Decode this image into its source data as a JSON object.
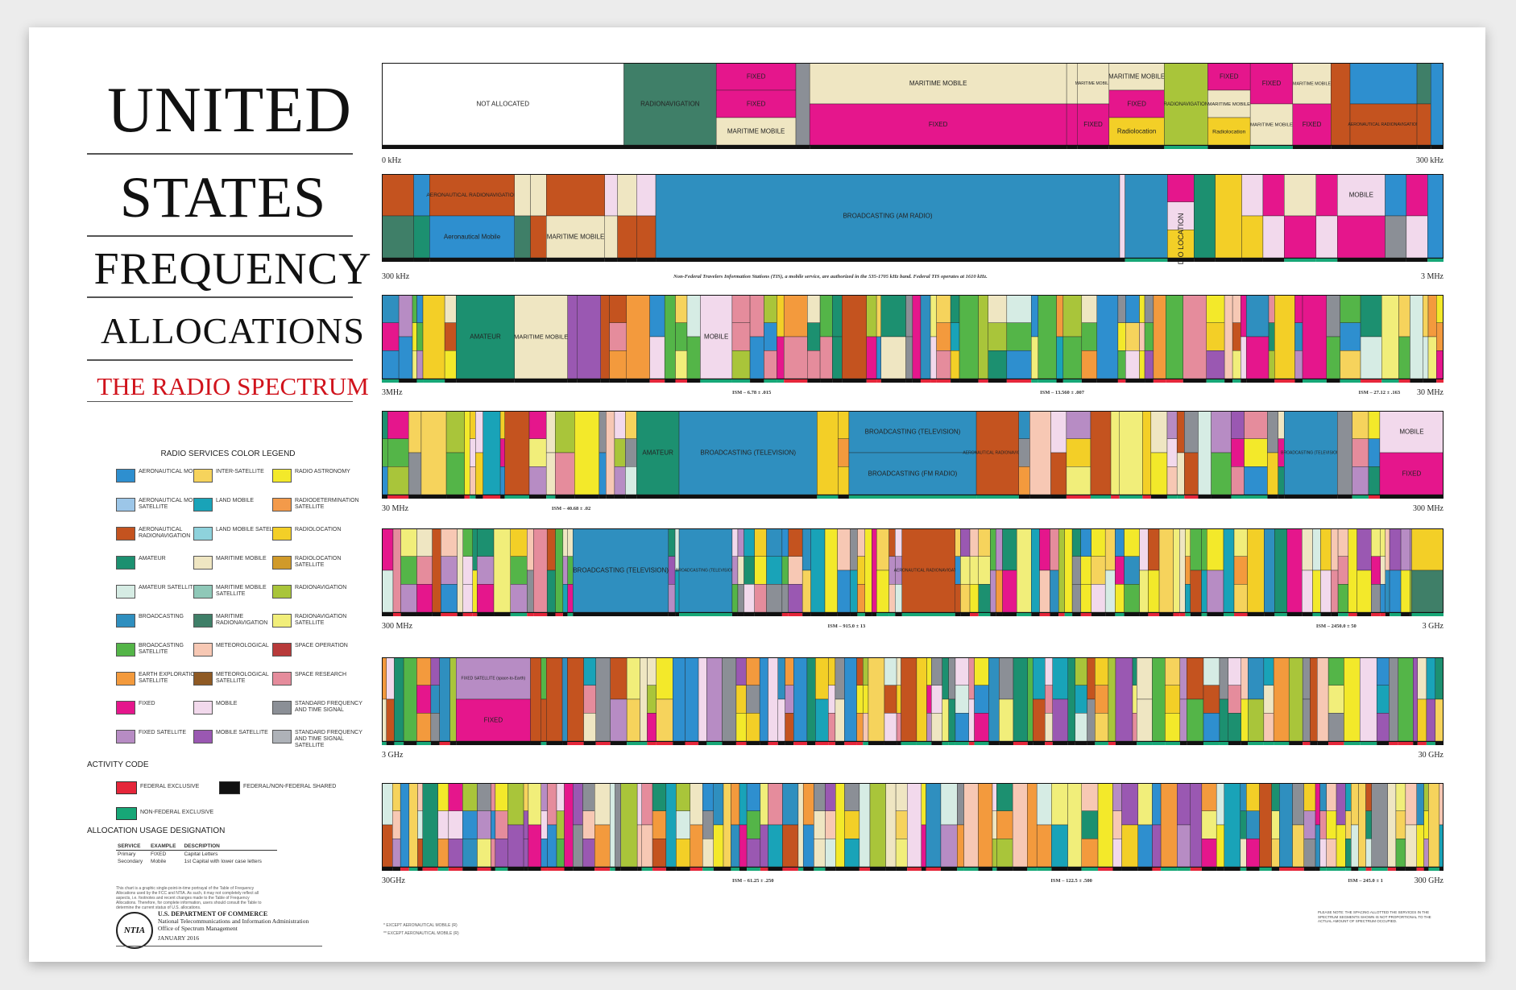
{
  "title": {
    "line1": "UNITED",
    "line2": "STATES",
    "line3": "FREQUENCY",
    "line4": "ALLOCATIONS",
    "subtitle": "THE RADIO SPECTRUM"
  },
  "legend": {
    "title": "RADIO SERVICES COLOR LEGEND",
    "items": [
      {
        "label": "AERONAUTICAL MOBILE",
        "color": "#2e8fcf"
      },
      {
        "label": "INTER-SATELLITE",
        "color": "#f6d35c"
      },
      {
        "label": "RADIO ASTRONOMY",
        "color": "#f3e92a"
      },
      {
        "label": "AERONAUTICAL MOBILE SATELLITE",
        "color": "#9cc6e8"
      },
      {
        "label": "LAND MOBILE",
        "color": "#19a3b8"
      },
      {
        "label": "RADIODETERMINATION SATELLITE",
        "color": "#f39a4a"
      },
      {
        "label": "AERONAUTICAL RADIONAVIGATION",
        "color": "#c4531f"
      },
      {
        "label": "LAND MOBILE SATELLITE",
        "color": "#8ed2dc"
      },
      {
        "label": "RADIOLOCATION",
        "color": "#f3cf27"
      },
      {
        "label": "AMATEUR",
        "color": "#1c9070"
      },
      {
        "label": "MARITIME MOBILE",
        "color": "#efe6c2"
      },
      {
        "label": "RADIOLOCATION SATELLITE",
        "color": "#d09a2a"
      },
      {
        "label": "AMATEUR SATELLITE",
        "color": "#d6ece4"
      },
      {
        "label": "MARITIME MOBILE SATELLITE",
        "color": "#8fc8b8"
      },
      {
        "label": "RADIONAVIGATION",
        "color": "#a9c53a"
      },
      {
        "label": "BROADCASTING",
        "color": "#2f8fbf"
      },
      {
        "label": "MARITIME RADIONAVIGATION",
        "color": "#3f7f68"
      },
      {
        "label": "RADIONAVIGATION SATELLITE",
        "color": "#f1ee7a"
      },
      {
        "label": "BROADCASTING SATELLITE",
        "color": "#54b548"
      },
      {
        "label": "METEOROLOGICAL",
        "color": "#f7c8b4"
      },
      {
        "label": "SPACE OPERATION",
        "color": "#b83a3a"
      },
      {
        "label": "EARTH EXPLORATION SATELLITE",
        "color": "#f39a3d"
      },
      {
        "label": "METEOROLOGICAL SATELLITE",
        "color": "#8f5a24"
      },
      {
        "label": "SPACE RESEARCH",
        "color": "#e58c9c"
      },
      {
        "label": "FIXED",
        "color": "#e5168c"
      },
      {
        "label": "MOBILE",
        "color": "#f2d9ec"
      },
      {
        "label": "STANDARD FREQUENCY AND TIME SIGNAL",
        "color": "#8b8f96"
      },
      {
        "label": "FIXED SATELLITE",
        "color": "#b78cc4"
      },
      {
        "label": "MOBILE SATELLITE",
        "color": "#9a58b2"
      },
      {
        "label": "STANDARD FREQUENCY AND TIME SIGNAL SATELLITE",
        "color": "#aeb2b8"
      }
    ]
  },
  "activity": {
    "title": "ACTIVITY CODE",
    "items": [
      {
        "label": "FEDERAL EXCLUSIVE",
        "color": "#e5263a"
      },
      {
        "label": "FEDERAL/NON-FEDERAL SHARED",
        "color": "#111111"
      },
      {
        "label": "NON-FEDERAL EXCLUSIVE",
        "color": "#17a777"
      }
    ]
  },
  "usage": {
    "title": "ALLOCATION USAGE DESIGNATION",
    "headers": [
      "SERVICE",
      "EXAMPLE",
      "DESCRIPTION"
    ],
    "rows": [
      [
        "Primary",
        "FIXED",
        "Capital Letters"
      ],
      [
        "Secondary",
        "Mobile",
        "1st Capital with lower case letters"
      ]
    ],
    "disclaimer": "This chart is a graphic single-point-in-time portrayal of the Table of Frequency Allocations used by the FCC and NTIA. As such, it may not completely reflect all aspects, i.e. footnotes and recent changes made to the Table of Frequency Allocations. Therefore, for complete information, users should consult the Table to determine the current status of U.S. allocations."
  },
  "department": {
    "logo": "NTIA",
    "line1": "U.S. DEPARTMENT OF COMMERCE",
    "line2": "National Telecommunications and Information Administration",
    "line3": "Office of Spectrum Management",
    "date": "JANUARY 2016"
  },
  "bands": [
    {
      "left_label": "0 kHz",
      "right_label": "300 kHz",
      "ism": []
    },
    {
      "left_label": "300 kHz",
      "right_label": "3 MHz",
      "ism": []
    },
    {
      "left_label": "3MHz",
      "right_label": "30 MHz",
      "ism": [
        "ISM – 6.78 ± .015",
        "ISM – 13.560 ± .007",
        "ISM – 27.12 ± .163"
      ]
    },
    {
      "left_label": "30 MHz",
      "right_label": "300 MHz",
      "ism": [
        "ISM – 40.68 ± .02"
      ]
    },
    {
      "left_label": "300 MHz",
      "right_label": "3 GHz",
      "ism": [
        "ISM – 915.0 ± 13",
        "ISM – 2450.0 ± 50"
      ]
    },
    {
      "left_label": "3 GHz",
      "right_label": "30 GHz",
      "ism": []
    },
    {
      "left_label": "30GHz",
      "right_label": "300 GHz",
      "ism": [
        "ISM – 61.25 ± .250",
        "ISM – 122.5 ± .500",
        "ISM – 245.0 ± 1"
      ]
    }
  ],
  "band_note": "Non-Federal Travelers Information Stations (TIS), a mobile service, are authorized in the 535-1705 kHz band. Federal TIS operates at 1610 kHz.",
  "segment_labels": {
    "not_allocated": "NOT ALLOCATED",
    "radionavigation": "RADIONAVIGATION",
    "fixed": "FIXED",
    "maritime_mobile": "MARITIME MOBILE",
    "radiolocation": "Radiolocation",
    "aero_radionav": "AERONAUTICAL RADIONAVIGATION",
    "aero_mobile": "Aeronautical Mobile",
    "broadcasting_am": "BROADCASTING (AM RADIO)",
    "mobile": "MOBILE",
    "amateur": "AMATEUR",
    "broadcasting_tv": "BROADCASTING (TELEVISION)",
    "broadcasting_fm": "BROADCASTING (FM RADIO)",
    "radio_astronomy": "RADIO ASTRONOMY",
    "fixed_satellite": "FIXED SATELLITE (space-to-Earth)",
    "maritime_radionav": "MARITIME RADIONAVIGATION",
    "radio_location": "RADIO LOCATION"
  },
  "footnotes": {
    "f1": "* EXCEPT AERONAUTICAL MOBILE (R)",
    "f2": "** EXCEPT AERONAUTICAL MOBILE (R)"
  },
  "please_note": "PLEASE NOTE: THE SPACING ALLOTTED THE SERVICES IN THE SPECTRUM SEGMENTS SHOWN IS NOT PROPORTIONAL TO THE ACTUAL AMOUNT OF SPECTRUM OCCUPIED."
}
